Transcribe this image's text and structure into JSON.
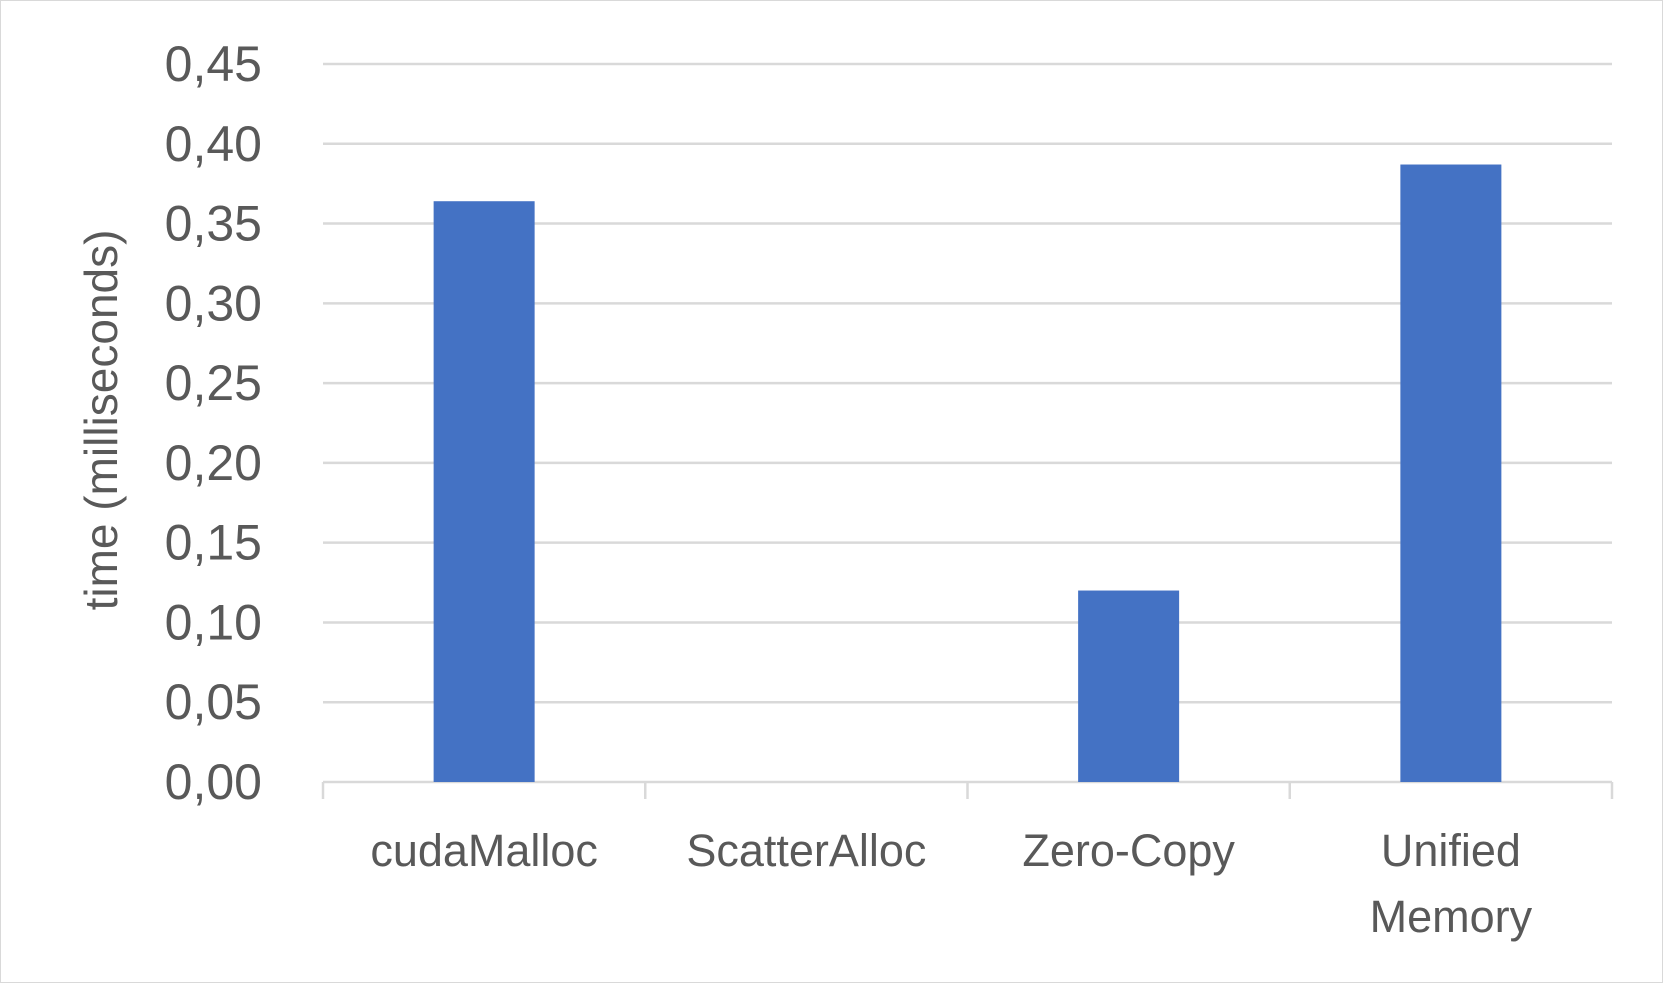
{
  "chart_data": {
    "type": "bar",
    "title": "",
    "xlabel": "",
    "ylabel": "time (milliseconds)",
    "categories": [
      [
        "cudaMalloc"
      ],
      [
        "ScatterAlloc"
      ],
      [
        "Zero-Copy"
      ],
      [
        "Unified",
        "Memory"
      ]
    ],
    "values": [
      0.364,
      0,
      0.12,
      0.387
    ],
    "ylim": [
      0,
      0.45
    ],
    "yticks": [
      "0,00",
      "0,05",
      "0,10",
      "0,15",
      "0,20",
      "0,25",
      "0,30",
      "0,35",
      "0,40",
      "0,45"
    ],
    "grid": true,
    "legend": "none",
    "colors": {
      "bar": "#4472c4",
      "grid": "#d9d9d9",
      "text": "#595959"
    }
  }
}
